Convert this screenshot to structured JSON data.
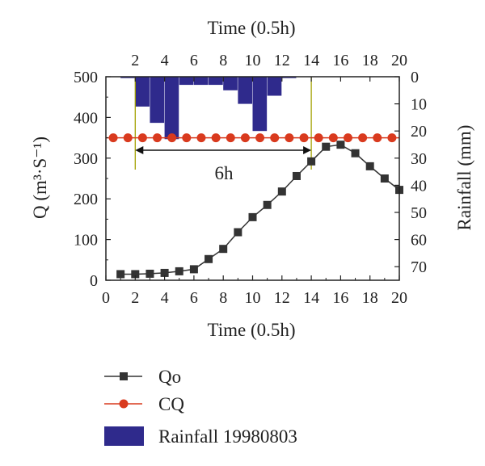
{
  "chart_data": {
    "type": "line",
    "title": "",
    "xlabel_bottom": "Time (0.5h)",
    "xlabel_top": "Time (0.5h)",
    "ylabel_left": "Q (m³·S⁻¹)",
    "ylabel_right": "Rainfall (mm)",
    "xlim": [
      0,
      20
    ],
    "ylim_left": [
      0,
      500
    ],
    "ylim_right_inverted": [
      0,
      75
    ],
    "x_ticks_bottom": [
      "0",
      "2",
      "4",
      "6",
      "8",
      "10",
      "12",
      "14",
      "16",
      "18",
      "20"
    ],
    "x_ticks_top": [
      "2",
      "4",
      "6",
      "8",
      "10",
      "12",
      "14",
      "16",
      "18",
      "20"
    ],
    "y_ticks_left": [
      "0",
      "100",
      "200",
      "300",
      "400",
      "500"
    ],
    "y_ticks_right": [
      "0",
      "10",
      "20",
      "30",
      "40",
      "50",
      "60",
      "70"
    ],
    "grid": false,
    "legend_placement": "below-left",
    "series": [
      {
        "name": "Qo",
        "color": "#333333",
        "marker": "square",
        "x": [
          1,
          2,
          3,
          4,
          5,
          6,
          7,
          8,
          9,
          10,
          11,
          12,
          13,
          14,
          15,
          16,
          17,
          18,
          19,
          20
        ],
        "y": [
          15,
          15,
          16,
          18,
          22,
          27,
          52,
          77,
          118,
          155,
          185,
          218,
          256,
          292,
          328,
          333,
          312,
          280,
          250,
          222
        ]
      },
      {
        "name": "CQ",
        "color": "#d93a1e",
        "marker": "circle",
        "x": [
          0.5,
          1.5,
          2.5,
          3.5,
          4.5,
          5.5,
          6.5,
          7.5,
          8.5,
          9.5,
          10.5,
          11.5,
          12.5,
          13.5,
          14.5,
          15.5,
          16.5,
          17.5,
          18.5,
          19.5
        ],
        "y": [
          350,
          350,
          350,
          350,
          350,
          350,
          350,
          350,
          350,
          350,
          350,
          350,
          350,
          350,
          350,
          350,
          350,
          350,
          350,
          350
        ]
      }
    ],
    "rainfall": {
      "name": "Rainfall 19980803",
      "color": "#2f2a8c",
      "x_start": [
        1,
        2,
        3,
        4,
        5,
        6,
        7,
        8,
        9,
        10,
        11,
        12
      ],
      "values": [
        0.5,
        11,
        17,
        23,
        3,
        3,
        3,
        5,
        10,
        20,
        7,
        0.5
      ]
    },
    "annotation": {
      "label": "6h",
      "x_from": 2,
      "x_to": 14
    }
  }
}
